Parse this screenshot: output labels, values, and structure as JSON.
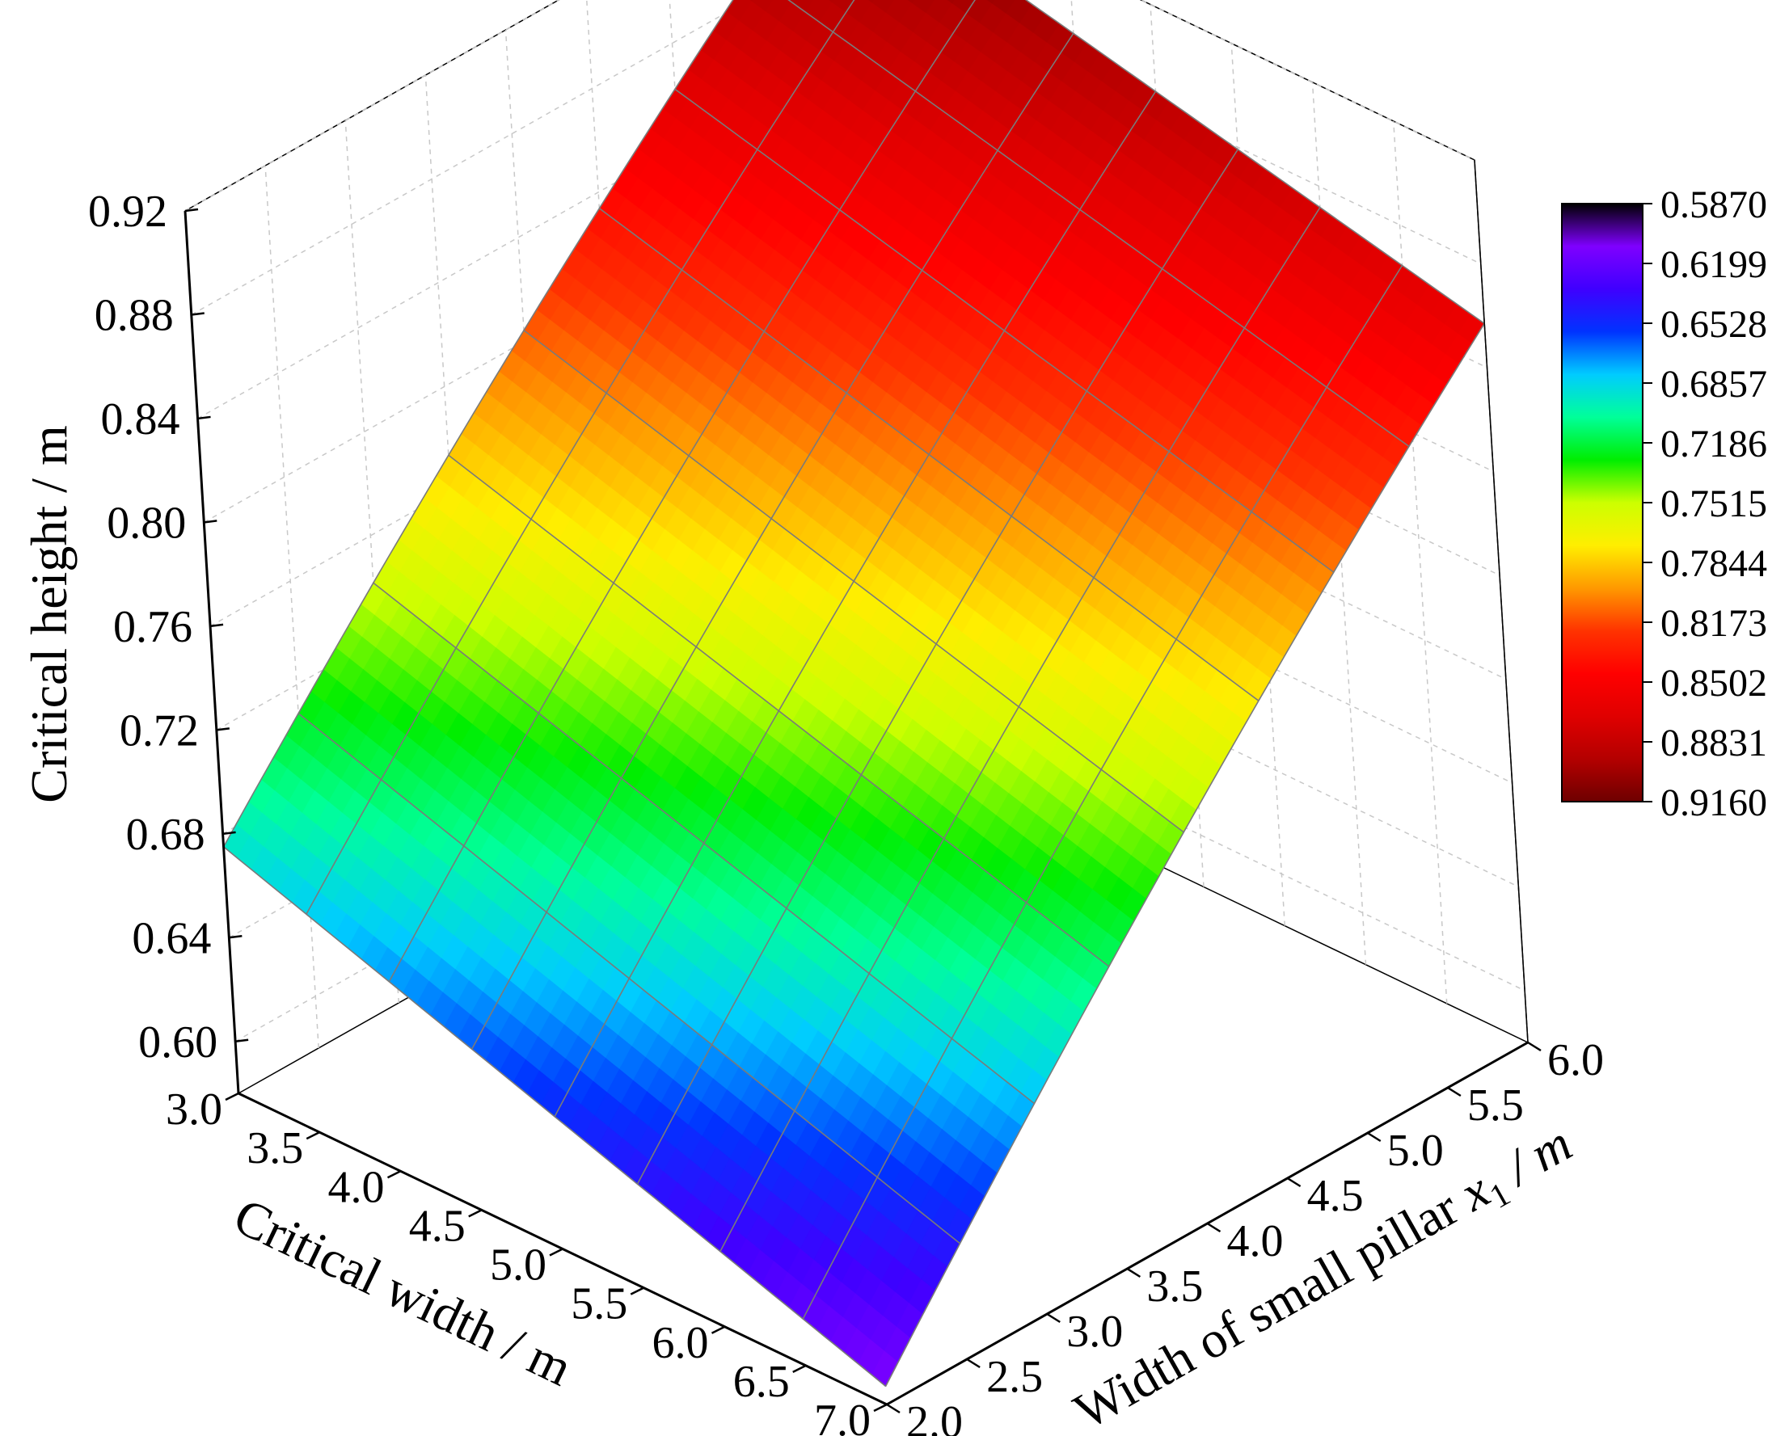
{
  "chart_data": {
    "type": "surface3d",
    "title": "",
    "x_axis": {
      "label": "Critical width / m",
      "ticks": [
        "3.0",
        "3.5",
        "4.0",
        "4.5",
        "5.0",
        "5.5",
        "6.0",
        "6.5",
        "7.0"
      ],
      "range": [
        3.0,
        7.0
      ]
    },
    "y_axis": {
      "label_main": "Width of small pillar ",
      "label_var": "x",
      "label_sub": "1",
      "label_unit": " / m",
      "ticks": [
        "2.0",
        "2.5",
        "3.0",
        "3.5",
        "4.0",
        "4.5",
        "5.0",
        "5.5",
        "6.0"
      ],
      "range": [
        2.0,
        6.0
      ]
    },
    "z_axis": {
      "label": "Critical height / m",
      "ticks": [
        "0.60",
        "0.64",
        "0.68",
        "0.72",
        "0.76",
        "0.80",
        "0.84",
        "0.88",
        "0.92"
      ],
      "range": [
        0.58,
        0.92
      ]
    },
    "surface": {
      "description_of_corners": "z at (critical width, pillar width)",
      "corners": [
        {
          "x": 3.0,
          "y": 2.0,
          "z": 0.675
        },
        {
          "x": 7.0,
          "y": 2.0,
          "z": 0.587
        },
        {
          "x": 3.0,
          "y": 6.0,
          "z": 0.916
        },
        {
          "x": 7.0,
          "y": 6.0,
          "z": 0.857
        }
      ],
      "grid_x": [
        3.0,
        3.5,
        4.0,
        4.5,
        5.0,
        5.5,
        6.0,
        6.5,
        7.0
      ],
      "grid_y": [
        2.0,
        2.5,
        3.0,
        3.5,
        4.0,
        4.5,
        5.0,
        5.5,
        6.0
      ]
    },
    "colorbar": {
      "labels": [
        "0.5870",
        "0.6199",
        "0.6528",
        "0.6857",
        "0.7186",
        "0.7515",
        "0.7844",
        "0.8173",
        "0.8502",
        "0.8831",
        "0.9160"
      ],
      "min": 0.587,
      "max": 0.916,
      "colors": [
        "#000000",
        "#7f00ff",
        "#3f00ff",
        "#0033ff",
        "#00ccff",
        "#00ff99",
        "#00ee00",
        "#ccff00",
        "#ffee00",
        "#ff9900",
        "#ff3300",
        "#ff0000",
        "#e00000",
        "#b40000",
        "#6e0000"
      ]
    },
    "grid": true,
    "legend": "colorbar-right"
  }
}
